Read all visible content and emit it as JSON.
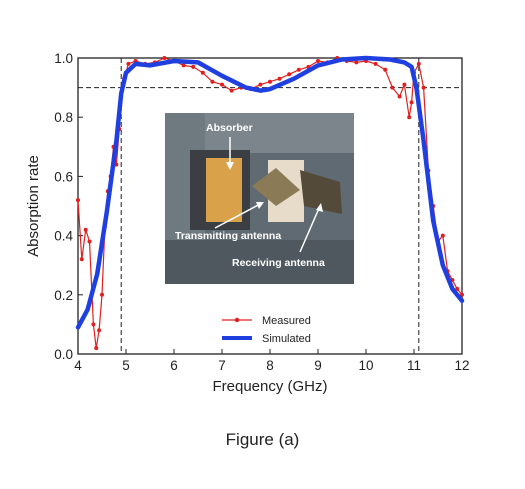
{
  "caption": "Figure (a)",
  "chart_data": {
    "type": "line",
    "xlabel": "Frequency (GHz)",
    "ylabel": "Absorption rate",
    "xlim": [
      4,
      12
    ],
    "ylim": [
      0.0,
      1.0
    ],
    "x_ticks": [
      "4",
      "5",
      "6",
      "7",
      "8",
      "9",
      "10",
      "11",
      "12"
    ],
    "y_ticks": [
      "0.0",
      "0.2",
      "0.4",
      "0.6",
      "0.8",
      "1.0"
    ],
    "reference_lines": {
      "horizontal_y": 0.9,
      "vertical_x": [
        4.9,
        11.1
      ]
    },
    "legend_position": "bottom-center",
    "inset_photo_labels": [
      "Absorber",
      "Transmitting antenna",
      "Receiving antenna"
    ],
    "series": [
      {
        "name": "Simulated",
        "color": "#1f3fe0",
        "style": "thick-line",
        "x": [
          4.0,
          4.2,
          4.4,
          4.6,
          4.8,
          4.9,
          5.0,
          5.2,
          5.5,
          6.0,
          6.5,
          7.0,
          7.5,
          7.8,
          8.0,
          8.5,
          9.0,
          9.5,
          10.0,
          10.5,
          10.8,
          10.95,
          11.05,
          11.2,
          11.4,
          11.6,
          11.8,
          12.0
        ],
        "y": [
          0.09,
          0.15,
          0.27,
          0.48,
          0.72,
          0.88,
          0.95,
          0.98,
          0.975,
          0.99,
          0.985,
          0.94,
          0.9,
          0.89,
          0.895,
          0.93,
          0.975,
          0.995,
          1.0,
          0.995,
          0.985,
          0.97,
          0.9,
          0.72,
          0.45,
          0.3,
          0.22,
          0.18
        ]
      },
      {
        "name": "Measured",
        "color": "#e02020",
        "style": "line-with-dots",
        "x": [
          4.0,
          4.08,
          4.16,
          4.24,
          4.32,
          4.38,
          4.44,
          4.5,
          4.56,
          4.62,
          4.68,
          4.74,
          4.8,
          4.86,
          4.9,
          4.96,
          5.05,
          5.2,
          5.4,
          5.6,
          5.8,
          6.0,
          6.2,
          6.4,
          6.6,
          6.8,
          7.0,
          7.2,
          7.4,
          7.6,
          7.8,
          8.0,
          8.2,
          8.4,
          8.6,
          8.8,
          9.0,
          9.2,
          9.4,
          9.6,
          9.8,
          10.0,
          10.2,
          10.4,
          10.55,
          10.7,
          10.8,
          10.9,
          10.95,
          11.0,
          11.1,
          11.2,
          11.3,
          11.4,
          11.5,
          11.6,
          11.7,
          11.8,
          11.9,
          12.0
        ],
        "y": [
          0.52,
          0.32,
          0.42,
          0.38,
          0.1,
          0.02,
          0.08,
          0.2,
          0.43,
          0.55,
          0.6,
          0.7,
          0.64,
          0.76,
          0.88,
          0.93,
          0.98,
          0.99,
          0.98,
          0.985,
          1.0,
          0.99,
          0.975,
          0.97,
          0.95,
          0.92,
          0.91,
          0.89,
          0.9,
          0.895,
          0.91,
          0.92,
          0.93,
          0.945,
          0.96,
          0.97,
          0.99,
          0.985,
          1.0,
          0.99,
          0.985,
          0.99,
          0.98,
          0.96,
          0.9,
          0.87,
          0.91,
          0.8,
          0.85,
          0.95,
          0.98,
          0.9,
          0.62,
          0.5,
          0.38,
          0.4,
          0.28,
          0.25,
          0.22,
          0.2
        ]
      }
    ]
  }
}
